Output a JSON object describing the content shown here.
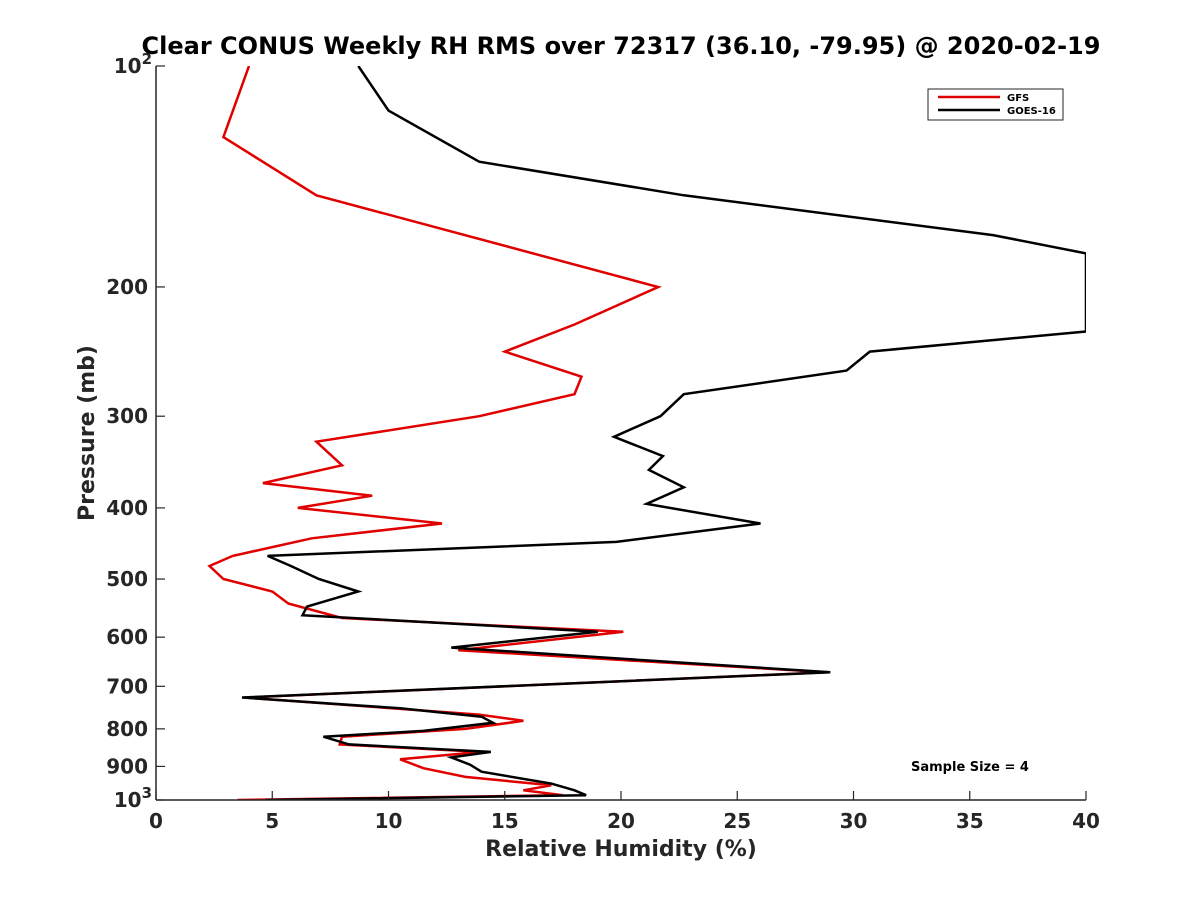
{
  "chart_data": {
    "type": "line",
    "title": "Clear CONUS Weekly RH RMS over 72317 (36.10, -79.95) @ 2020-02-19",
    "xlabel": "Relative Humidity (%)",
    "ylabel": "Pressure (mb)",
    "xlim": [
      0,
      40
    ],
    "ylim": [
      100,
      1000
    ],
    "yscale": "log",
    "y_reversed": true,
    "grid": false,
    "legend_position": "top-right",
    "x_ticks": [
      {
        "value": 0,
        "label": "0"
      },
      {
        "value": 5,
        "label": "5"
      },
      {
        "value": 10,
        "label": "10"
      },
      {
        "value": 15,
        "label": "15"
      },
      {
        "value": 20,
        "label": "20"
      },
      {
        "value": 25,
        "label": "25"
      },
      {
        "value": 30,
        "label": "30"
      },
      {
        "value": 35,
        "label": "35"
      },
      {
        "value": 40,
        "label": "40"
      }
    ],
    "y_ticks": [
      {
        "value": 100,
        "base": "10",
        "exp": "2"
      },
      {
        "value": 200,
        "base": "200",
        "exp": ""
      },
      {
        "value": 300,
        "base": "300",
        "exp": ""
      },
      {
        "value": 400,
        "base": "400",
        "exp": ""
      },
      {
        "value": 500,
        "base": "500",
        "exp": ""
      },
      {
        "value": 600,
        "base": "600",
        "exp": ""
      },
      {
        "value": 700,
        "base": "700",
        "exp": ""
      },
      {
        "value": 800,
        "base": "800",
        "exp": ""
      },
      {
        "value": 900,
        "base": "900",
        "exp": ""
      },
      {
        "value": 1000,
        "base": "10",
        "exp": "3"
      }
    ],
    "annotation": "Sample Size = 4",
    "series": [
      {
        "name": "GFS",
        "color": "#e00000",
        "points": [
          [
            4.0,
            100
          ],
          [
            2.9,
            125
          ],
          [
            6.9,
            150
          ],
          [
            21.6,
            200
          ],
          [
            18.0,
            225
          ],
          [
            15.0,
            245
          ],
          [
            18.3,
            265
          ],
          [
            18.0,
            280
          ],
          [
            13.9,
            300
          ],
          [
            6.9,
            325
          ],
          [
            8.0,
            350
          ],
          [
            4.6,
            370
          ],
          [
            9.3,
            385
          ],
          [
            6.1,
            400
          ],
          [
            12.3,
            420
          ],
          [
            6.7,
            440
          ],
          [
            3.3,
            465
          ],
          [
            2.3,
            480
          ],
          [
            2.9,
            500
          ],
          [
            5.0,
            520
          ],
          [
            5.7,
            540
          ],
          [
            8.0,
            565
          ],
          [
            20.1,
            590
          ],
          [
            13.0,
            625
          ],
          [
            28.9,
            670
          ],
          [
            3.8,
            725
          ],
          [
            13.9,
            765
          ],
          [
            15.8,
            780
          ],
          [
            13.3,
            800
          ],
          [
            8.0,
            820
          ],
          [
            7.9,
            840
          ],
          [
            14.0,
            860
          ],
          [
            10.5,
            880
          ],
          [
            11.5,
            905
          ],
          [
            13.3,
            930
          ],
          [
            17.0,
            955
          ],
          [
            15.8,
            970
          ],
          [
            17.5,
            985
          ],
          [
            3.5,
            1000
          ]
        ]
      },
      {
        "name": "GOES-16",
        "color": "#000000",
        "points": [
          [
            8.7,
            100
          ],
          [
            10.0,
            115
          ],
          [
            13.9,
            135
          ],
          [
            22.7,
            150
          ],
          [
            36.0,
            170
          ],
          [
            40.0,
            180
          ],
          [
            40.0,
            230
          ],
          [
            30.7,
            245
          ],
          [
            29.7,
            260
          ],
          [
            22.7,
            280
          ],
          [
            21.7,
            300
          ],
          [
            19.7,
            320
          ],
          [
            21.8,
            340
          ],
          [
            21.2,
            355
          ],
          [
            22.7,
            375
          ],
          [
            21.1,
            395
          ],
          [
            26.0,
            420
          ],
          [
            19.8,
            445
          ],
          [
            4.8,
            465
          ],
          [
            5.8,
            480
          ],
          [
            7.0,
            500
          ],
          [
            8.7,
            520
          ],
          [
            6.5,
            545
          ],
          [
            6.3,
            560
          ],
          [
            19.0,
            590
          ],
          [
            12.7,
            620
          ],
          [
            29.0,
            670
          ],
          [
            3.7,
            725
          ],
          [
            10.5,
            750
          ],
          [
            14.0,
            770
          ],
          [
            14.5,
            785
          ],
          [
            11.5,
            805
          ],
          [
            7.2,
            820
          ],
          [
            8.3,
            840
          ],
          [
            14.4,
            860
          ],
          [
            12.7,
            875
          ],
          [
            13.5,
            895
          ],
          [
            14.0,
            915
          ],
          [
            17.0,
            950
          ],
          [
            18.0,
            970
          ],
          [
            18.5,
            985
          ],
          [
            4.7,
            1000
          ]
        ]
      }
    ]
  }
}
